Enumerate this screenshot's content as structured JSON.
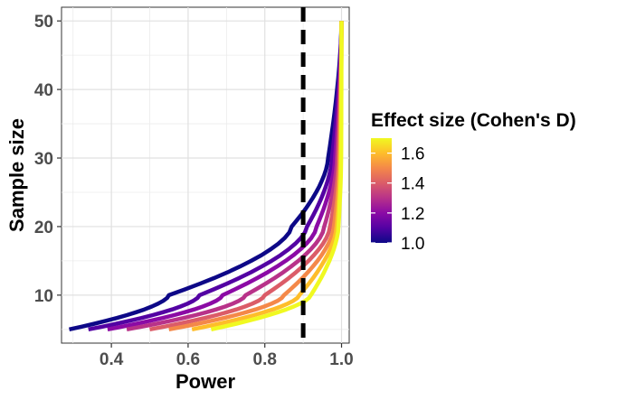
{
  "chart_data": {
    "type": "line",
    "title": "",
    "xlabel": "Power",
    "ylabel": "Sample size",
    "xlim": [
      0.27,
      1.02
    ],
    "ylim": [
      3.0,
      52.0
    ],
    "x_ticks": [
      0.4,
      0.6,
      0.8,
      1.0
    ],
    "x_tick_labels": [
      "0.4",
      "0.6",
      "0.8",
      "1.0"
    ],
    "y_ticks": [
      10,
      20,
      30,
      40,
      50
    ],
    "y_tick_labels": [
      "10",
      "20",
      "30",
      "40",
      "50"
    ],
    "grid": true,
    "reference_line": {
      "axis": "x",
      "value": 0.9,
      "style": "dashed",
      "color": "#000000"
    },
    "legend": {
      "title": "Effect size (Cohen's D)",
      "placement": "right",
      "type": "colorbar",
      "ticks": [
        1.0,
        1.2,
        1.4,
        1.6
      ],
      "tick_labels": [
        "1.0",
        "1.2",
        "1.4",
        "1.6"
      ],
      "range": [
        1.0,
        1.7
      ]
    },
    "color_scale": {
      "name": "plasma",
      "stops": [
        "#0d0887",
        "#5302a3",
        "#8b0aa5",
        "#b83289",
        "#db5c68",
        "#f48849",
        "#febd2a",
        "#f0f921"
      ]
    },
    "n_start": 5,
    "n_end": 50,
    "series": [
      {
        "effect_size": 1.0,
        "power_start": 0.29,
        "x_at_10": 0.55,
        "x_at_20": 0.87,
        "x_at_30": 0.965
      },
      {
        "effect_size": 1.1,
        "power_start": 0.34,
        "x_at_10": 0.63,
        "x_at_20": 0.91,
        "x_at_30": 0.975
      },
      {
        "effect_size": 1.2,
        "power_start": 0.39,
        "x_at_10": 0.69,
        "x_at_20": 0.935,
        "x_at_30": 0.983
      },
      {
        "effect_size": 1.3,
        "power_start": 0.44,
        "x_at_10": 0.75,
        "x_at_20": 0.955,
        "x_at_30": 0.988
      },
      {
        "effect_size": 1.4,
        "power_start": 0.5,
        "x_at_10": 0.8,
        "x_at_20": 0.97,
        "x_at_30": 0.992
      },
      {
        "effect_size": 1.5,
        "power_start": 0.55,
        "x_at_10": 0.85,
        "x_at_20": 0.98,
        "x_at_30": 0.995
      },
      {
        "effect_size": 1.6,
        "power_start": 0.61,
        "x_at_10": 0.89,
        "x_at_20": 0.987,
        "x_at_30": 0.997
      },
      {
        "effect_size": 1.7,
        "power_start": 0.66,
        "x_at_10": 0.92,
        "x_at_20": 0.992,
        "x_at_30": 0.999
      }
    ]
  }
}
